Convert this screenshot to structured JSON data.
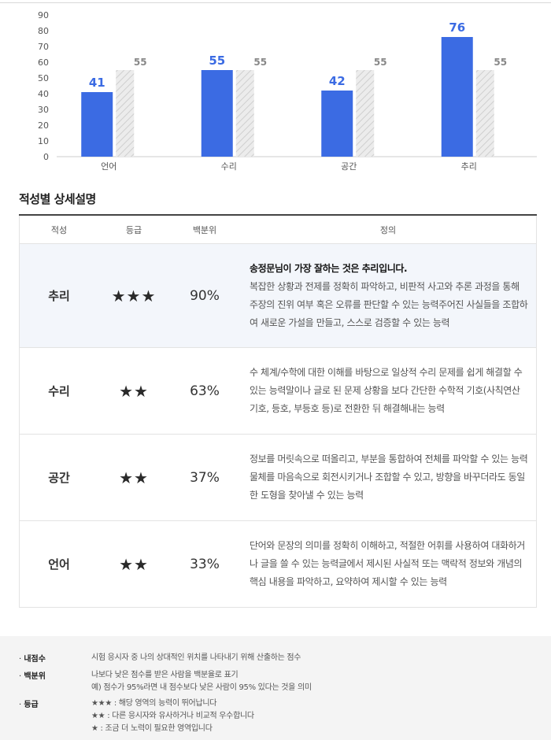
{
  "chart_data": {
    "type": "bar",
    "categories": [
      "언어",
      "수리",
      "공간",
      "추리"
    ],
    "series": [
      {
        "values": [
          41,
          55,
          42,
          76
        ]
      },
      {
        "values": [
          55,
          55,
          55,
          55
        ]
      }
    ],
    "data_labels": [
      [
        "41",
        "55",
        "42",
        "76"
      ],
      [
        "55",
        "55",
        "55",
        "55"
      ]
    ],
    "yticks": [
      "0",
      "10",
      "20",
      "30",
      "40",
      "50",
      "60",
      "70",
      "80",
      "90"
    ],
    "ylim": [
      0,
      90
    ],
    "colors": {
      "primary": "#3b6be3",
      "secondary": "#e6e6e6",
      "secondary_hatch": "#cfcfcf",
      "label_primary": "#3b6be3",
      "label_secondary": "#888888"
    }
  },
  "section_title": "적성별 상세설명",
  "table": {
    "headers": [
      "적성",
      "등급",
      "백분위",
      "정의"
    ],
    "rows": [
      {
        "name": "추리",
        "grade": "★★★",
        "percentile": "90%",
        "highlight": true,
        "lead": "송정문님이 가장 잘하는 것은 추리입니다.",
        "definition": "복잡한 상황과 전제를 정확히 파악하고, 비판적 사고와 추론 과정을 통해 주장의 진위 여부 혹은 오류를 판단할 수 있는 능력주어진 사실들을 조합하여 새로운 가설을 만들고, 스스로 검증할 수 있는 능력"
      },
      {
        "name": "수리",
        "grade": "★★",
        "percentile": "63%",
        "highlight": false,
        "lead": "",
        "definition": "수 체계/수학에 대한 이해를 바탕으로 일상적 수리 문제를 쉽게 해결할 수 있는 능력말이나 글로 된 문제 상황을 보다 간단한 수학적 기호(사칙연산 기호, 등호, 부등호 등)로 전환한 뒤 해결해내는 능력"
      },
      {
        "name": "공간",
        "grade": "★★",
        "percentile": "37%",
        "highlight": false,
        "lead": "",
        "definition": "정보를 머릿속으로 떠올리고, 부분을 통합하여 전체를 파악할 수 있는 능력물체를 마음속으로 회전시키거나 조합할 수 있고, 방향을 바꾸더라도 동일한 도형을 찾아낼 수 있는 능력"
      },
      {
        "name": "언어",
        "grade": "★★",
        "percentile": "33%",
        "highlight": false,
        "lead": "",
        "definition": "단어와 문장의 의미를 정확히 이해하고, 적절한 어휘를 사용하여 대화하거나 글을 쓸 수 있는 능력글에서 제시된 사실적 또는 맥락적 정보와 개념의 핵심 내용을 파악하고, 요약하여 제시할 수 있는 능력"
      }
    ]
  },
  "notes": [
    {
      "label": "내점수",
      "lines": [
        "시험 응시자 중 나의 상대적인 위치를 나타내기 위해 산출하는 점수"
      ]
    },
    {
      "label": "백분위",
      "lines": [
        "나보다 낮은 점수를 받은 사람을 백분율로 표기",
        "예) 점수가 95%라면 내 점수보다 낮은 사람이 95% 있다는 것을 의미"
      ]
    },
    {
      "label": "등급",
      "lines": [
        "★★★ : 해당 영역의 능력이 뛰어납니다",
        "★★ : 다른 응시자와 유사하거나 비교적 우수합니다",
        "★ : 조금 더 노력이 필요한 영역입니다"
      ]
    }
  ]
}
